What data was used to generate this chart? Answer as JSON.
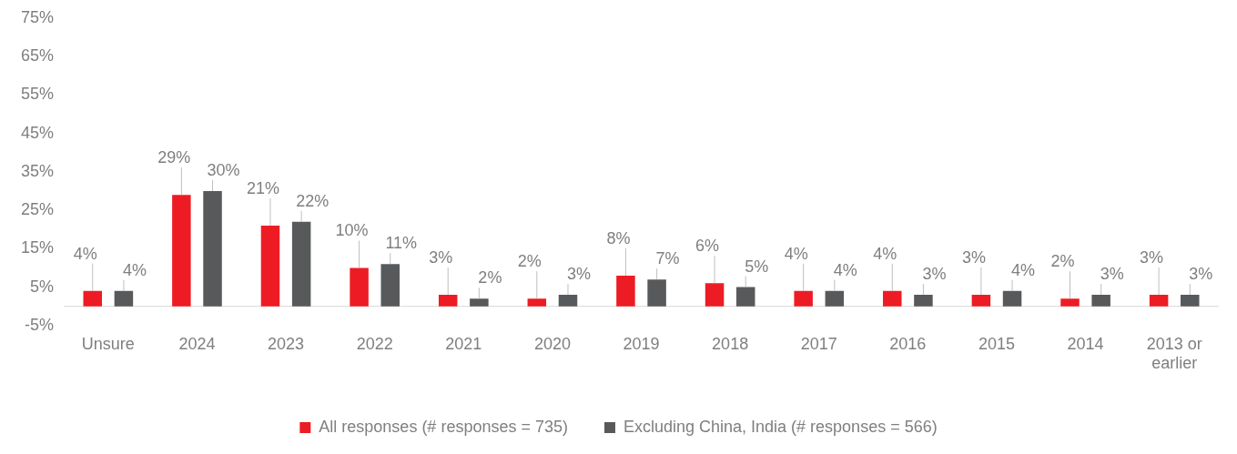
{
  "chart_data": {
    "type": "bar",
    "categories": [
      "Unsure",
      "2024",
      "2023",
      "2022",
      "2021",
      "2020",
      "2019",
      "2018",
      "2017",
      "2016",
      "2015",
      "2014",
      "2013 or earlier"
    ],
    "series": [
      {
        "name": "All responses (# responses = 735)",
        "color": "#ed1c24",
        "values": [
          4,
          29,
          21,
          10,
          3,
          2,
          8,
          6,
          4,
          4,
          3,
          2,
          3
        ],
        "value_labels": [
          "4%",
          "29%",
          "21%",
          "10%",
          "3%",
          "2%",
          "8%",
          "6%",
          "4%",
          "4%",
          "3%",
          "2%",
          "3%"
        ]
      },
      {
        "name": "Excluding China, India (# responses = 566)",
        "color": "#58595b",
        "values": [
          4,
          30,
          22,
          11,
          2,
          3,
          7,
          5,
          4,
          3,
          4,
          3,
          3
        ],
        "value_labels": [
          "4%",
          "30%",
          "22%",
          "11%",
          "2%",
          "3%",
          "7%",
          "5%",
          "4%",
          "3%",
          "4%",
          "3%",
          "3%"
        ]
      }
    ],
    "ylim": [
      -5,
      75
    ],
    "yticks": [
      {
        "value": -5,
        "label": "-5%"
      },
      {
        "value": 5,
        "label": "5%"
      },
      {
        "value": 15,
        "label": "15%"
      },
      {
        "value": 25,
        "label": "25%"
      },
      {
        "value": 35,
        "label": "35%"
      },
      {
        "value": 45,
        "label": "45%"
      },
      {
        "value": 55,
        "label": "55%"
      },
      {
        "value": 65,
        "label": "65%"
      },
      {
        "value": 75,
        "label": "75%"
      }
    ],
    "grid": false,
    "legend": "bottom"
  }
}
